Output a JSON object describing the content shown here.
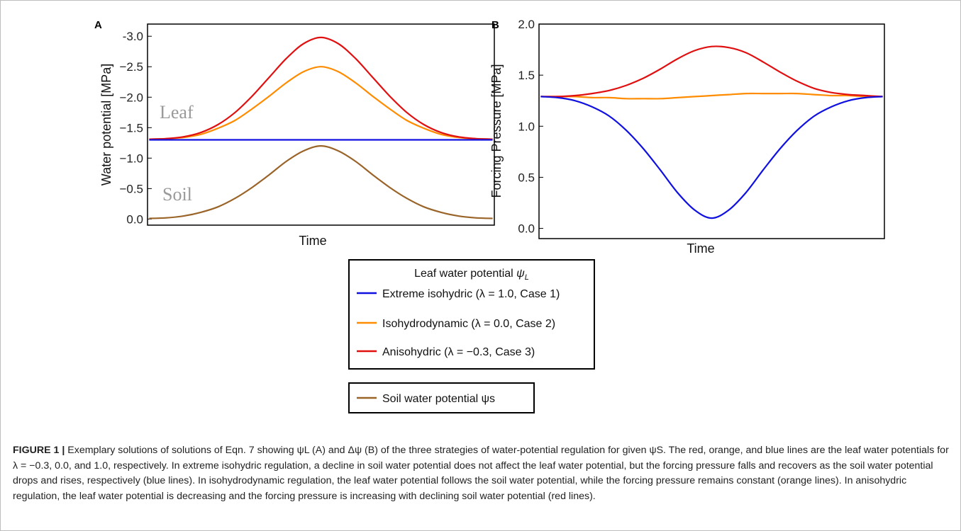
{
  "chart_data": [
    {
      "type": "line",
      "panel": "A",
      "xlabel": "Time",
      "ylabel": "Water potential [MPa]",
      "ylim": [
        0.1,
        -3.2
      ],
      "yticks": [
        "-3.0",
        "−2.5",
        "−2.0",
        "−1.5",
        "−1.0",
        "−0.5",
        "0.0"
      ],
      "annotations": [
        "Leaf",
        "Soil"
      ],
      "x": [
        0,
        0.05,
        0.1,
        0.15,
        0.2,
        0.25,
        0.3,
        0.35,
        0.4,
        0.45,
        0.5,
        0.55,
        0.6,
        0.65,
        0.7,
        0.75,
        0.8,
        0.85,
        0.9,
        0.95,
        1.0
      ],
      "series": [
        {
          "name": "Extreme isohydric (λ = 1.0, Case 1)",
          "color": "#1010e0",
          "values": [
            -1.3,
            -1.3,
            -1.3,
            -1.3,
            -1.3,
            -1.3,
            -1.3,
            -1.3,
            -1.3,
            -1.3,
            -1.3,
            -1.3,
            -1.3,
            -1.3,
            -1.3,
            -1.3,
            -1.3,
            -1.3,
            -1.3,
            -1.3,
            -1.3
          ]
        },
        {
          "name": "Isohydrodynamic (λ = 0.0, Case 2)",
          "color": "#ff8c00",
          "values": [
            -1.31,
            -1.32,
            -1.34,
            -1.39,
            -1.49,
            -1.62,
            -1.81,
            -2.02,
            -2.24,
            -2.42,
            -2.5,
            -2.42,
            -2.24,
            -2.02,
            -1.81,
            -1.62,
            -1.49,
            -1.39,
            -1.34,
            -1.32,
            -1.31
          ]
        },
        {
          "name": "Anisohydric (λ  = −0.3, Case 3)",
          "color": "#e01010",
          "values": [
            -1.31,
            -1.32,
            -1.35,
            -1.42,
            -1.55,
            -1.75,
            -2.02,
            -2.33,
            -2.64,
            -2.88,
            -2.98,
            -2.88,
            -2.64,
            -2.33,
            -2.02,
            -1.75,
            -1.55,
            -1.42,
            -1.35,
            -1.32,
            -1.31
          ]
        },
        {
          "name": "Soil water potential ψs",
          "color": "#9a6428",
          "values": [
            -0.01,
            -0.02,
            -0.05,
            -0.11,
            -0.2,
            -0.34,
            -0.52,
            -0.73,
            -0.95,
            -1.12,
            -1.2,
            -1.12,
            -0.95,
            -0.73,
            -0.52,
            -0.34,
            -0.2,
            -0.11,
            -0.05,
            -0.02,
            -0.01
          ]
        }
      ]
    },
    {
      "type": "line",
      "panel": "B",
      "xlabel": "Time",
      "ylabel": "Forcing Pressure [MPa]",
      "ylim": [
        -0.1,
        2.0
      ],
      "yticks": [
        "0.0",
        "0.5",
        "1.0",
        "1.5",
        "2.0"
      ],
      "x": [
        0,
        0.05,
        0.1,
        0.15,
        0.2,
        0.25,
        0.3,
        0.35,
        0.4,
        0.45,
        0.5,
        0.55,
        0.6,
        0.65,
        0.7,
        0.75,
        0.8,
        0.85,
        0.9,
        0.95,
        1.0
      ],
      "series": [
        {
          "name": "Extreme isohydric (λ = 1.0, Case 1)",
          "color": "#1010e0",
          "values": [
            1.29,
            1.28,
            1.25,
            1.19,
            1.1,
            0.96,
            0.78,
            0.57,
            0.35,
            0.18,
            0.1,
            0.18,
            0.35,
            0.57,
            0.78,
            0.96,
            1.1,
            1.19,
            1.25,
            1.28,
            1.29
          ]
        },
        {
          "name": "Isohydrodynamic (λ = 0.0, Case 2)",
          "color": "#ff8c00",
          "values": [
            1.29,
            1.29,
            1.29,
            1.28,
            1.28,
            1.27,
            1.27,
            1.27,
            1.28,
            1.29,
            1.3,
            1.31,
            1.32,
            1.32,
            1.32,
            1.32,
            1.31,
            1.3,
            1.3,
            1.29,
            1.29
          ]
        },
        {
          "name": "Anisohydric (λ  = −0.3, Case 3)",
          "color": "#e01010",
          "values": [
            1.29,
            1.29,
            1.3,
            1.32,
            1.35,
            1.4,
            1.47,
            1.56,
            1.66,
            1.74,
            1.78,
            1.77,
            1.72,
            1.63,
            1.53,
            1.44,
            1.37,
            1.33,
            1.31,
            1.3,
            1.29
          ]
        }
      ]
    }
  ],
  "legend": {
    "title": "Leaf water potential ψL",
    "items": [
      {
        "label": "Extreme isohydric (λ = 1.0, Case 1)",
        "color": "#1010e0"
      },
      {
        "label": "Isohydrodynamic (λ = 0.0, Case 2)",
        "color": "#ff8c00"
      },
      {
        "label": "Anisohydric (λ  = −0.3, Case 3)",
        "color": "#e01010"
      }
    ],
    "soil_label": "Soil water potential ψs",
    "soil_color": "#9a6428"
  },
  "caption": {
    "label": "FIGURE 1 |",
    "text": "Exemplary solutions of solutions of Eqn. 7 showing ψL (A) and Δψ (B) of the three strategies of water-potential regulation for given ψS. The red, orange, and blue lines are the leaf water potentials for λ = −0.3, 0.0, and 1.0, respectively. In extreme isohydric regulation, a decline in soil water potential does not affect the leaf water potential, but the forcing pressure falls and recovers as the soil water potential drops and rises, respectively (blue lines). In isohydrodynamic regulation, the leaf water potential follows the soil water potential, while the forcing pressure remains constant (orange lines). In anisohydric regulation, the leaf water potential is decreasing and the forcing pressure is increasing with declining soil water potential (red lines)."
  }
}
